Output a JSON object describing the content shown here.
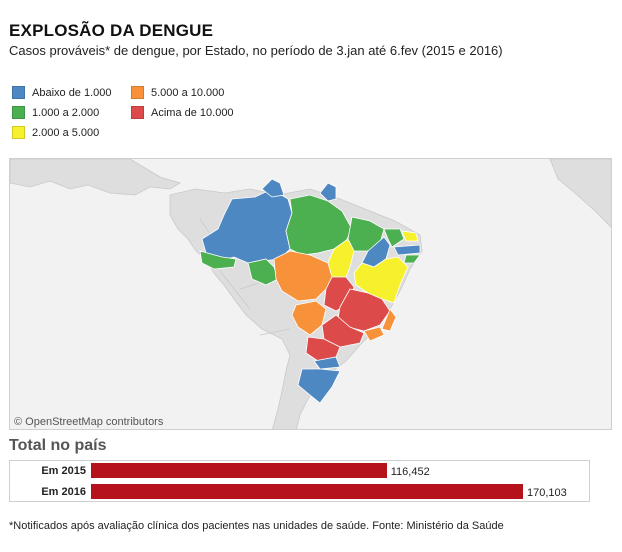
{
  "header": {
    "title": "EXPLOSÃO DA DENGUE",
    "subtitle": "Casos prováveis* de dengue, por Estado, no período de 3.jan até 6.fev (2015 e 2016)"
  },
  "legend": [
    {
      "label": "Abaixo de 1.000",
      "color": "#4e88c2"
    },
    {
      "label": "1.000 a 2.000",
      "color": "#4caf50"
    },
    {
      "label": "2.000 a 5.000",
      "color": "#f7f12d"
    },
    {
      "label": "5.000 a 10.000",
      "color": "#f7923a"
    },
    {
      "label": "Acima de 10.000",
      "color": "#dc4a4a"
    }
  ],
  "map": {
    "attribution": "© OpenStreetMap contributors"
  },
  "totals": {
    "title": "Total no país"
  },
  "chart_data": {
    "type": "bar",
    "title": "Total no país",
    "categories": [
      "Em 2015",
      "Em 2016"
    ],
    "values": [
      116452,
      170103
    ],
    "value_labels": [
      "116,452",
      "170,103"
    ],
    "orientation": "horizontal",
    "color": "#b5121b"
  },
  "footnote": "*Notificados após avaliação clínica dos pacientes nas unidades de saúde. Fonte: Ministério da Saúde"
}
